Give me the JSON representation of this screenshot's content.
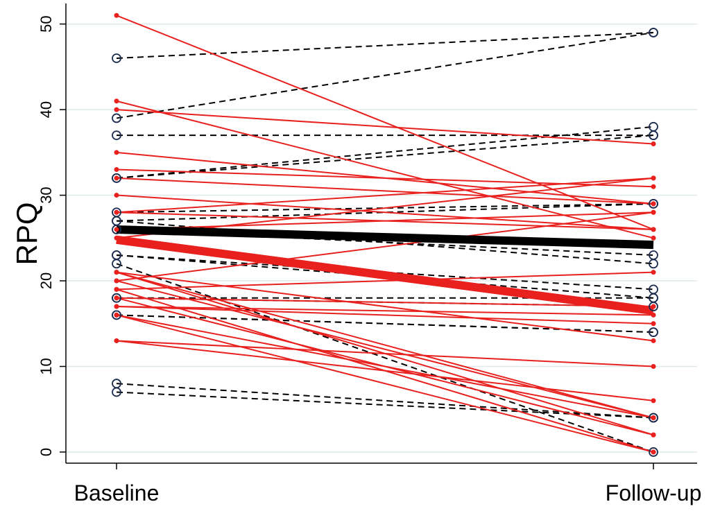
{
  "chart_data": {
    "type": "slope",
    "y_label": "RPQ",
    "categories": [
      "Baseline",
      "Follow-up"
    ],
    "ylim": [
      -1.3,
      52.4
    ],
    "yticks": [
      0,
      10,
      20,
      30,
      40,
      50
    ],
    "grid": true,
    "series": [
      {
        "color": "#000000",
        "dashed": true,
        "marker": "open",
        "marker_color": "#1c2b4e",
        "width": 2,
        "lines": [
          [
            46,
            49
          ],
          [
            39,
            49
          ],
          [
            37,
            37
          ],
          [
            32,
            38
          ],
          [
            32,
            37
          ],
          [
            28,
            29
          ],
          [
            27,
            29
          ],
          [
            27,
            22
          ],
          [
            26,
            23
          ],
          [
            23,
            19
          ],
          [
            23,
            18
          ],
          [
            22,
            0
          ],
          [
            18,
            18
          ],
          [
            18,
            17
          ],
          [
            16,
            14
          ],
          [
            16,
            14
          ],
          [
            8,
            4
          ],
          [
            7,
            4
          ]
        ]
      },
      {
        "color": "#e8201e",
        "dashed": false,
        "marker": "filled",
        "marker_color": "#e8201e",
        "width": 2,
        "lines": [
          [
            51,
            26
          ],
          [
            41,
            25
          ],
          [
            40,
            36
          ],
          [
            35,
            29
          ],
          [
            33,
            31
          ],
          [
            32,
            29
          ],
          [
            30,
            26
          ],
          [
            28,
            32
          ],
          [
            28,
            26
          ],
          [
            26,
            28
          ],
          [
            25,
            32
          ],
          [
            21,
            13
          ],
          [
            20,
            28
          ],
          [
            19,
            21
          ],
          [
            18,
            17
          ],
          [
            17,
            15
          ],
          [
            17,
            16
          ],
          [
            21,
            4
          ],
          [
            21,
            2
          ],
          [
            20,
            4
          ],
          [
            19,
            0
          ],
          [
            18,
            2
          ],
          [
            16,
            4
          ],
          [
            16,
            0
          ],
          [
            13,
            6
          ],
          [
            13,
            10
          ]
        ]
      },
      {
        "color": "#000000",
        "dashed": false,
        "marker": "none",
        "width": 12,
        "lines": [
          [
            26,
            24.2
          ]
        ]
      },
      {
        "color": "#e8201e",
        "dashed": false,
        "marker": "none",
        "width": 12,
        "lines": [
          [
            24.8,
            16.5
          ]
        ]
      }
    ]
  }
}
